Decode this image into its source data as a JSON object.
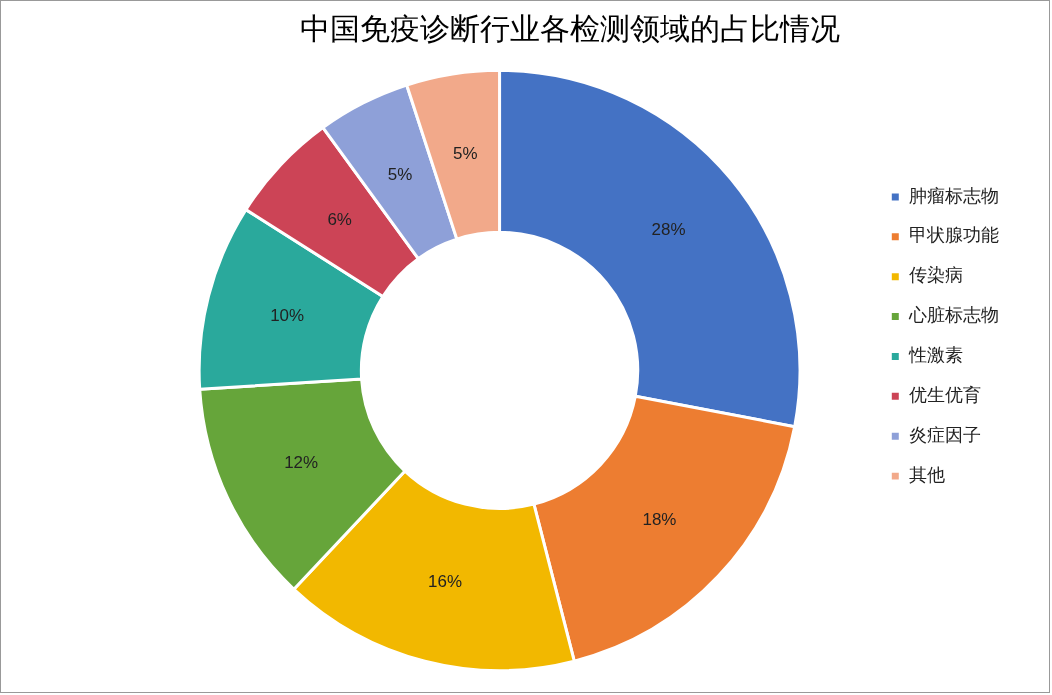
{
  "chart_data": {
    "type": "donut",
    "title": "中国免疫诊断行业各检测领域的占比情况",
    "categories": [
      "肿瘤标志物",
      "甲状腺功能",
      "传染病",
      "心脏标志物",
      "性激素",
      "优生优育",
      "炎症因子",
      "其他"
    ],
    "values": [
      28,
      18,
      16,
      12,
      10,
      6,
      5,
      5
    ],
    "value_labels": [
      "28%",
      "18%",
      "16%",
      "12%",
      "10%",
      "6%",
      "5%",
      "5%"
    ],
    "colors": [
      "#4472c4",
      "#ed7d31",
      "#f2b800",
      "#66a53a",
      "#2aa99c",
      "#cc4456",
      "#8ea0d8",
      "#f2a98a"
    ],
    "legend": "right"
  }
}
